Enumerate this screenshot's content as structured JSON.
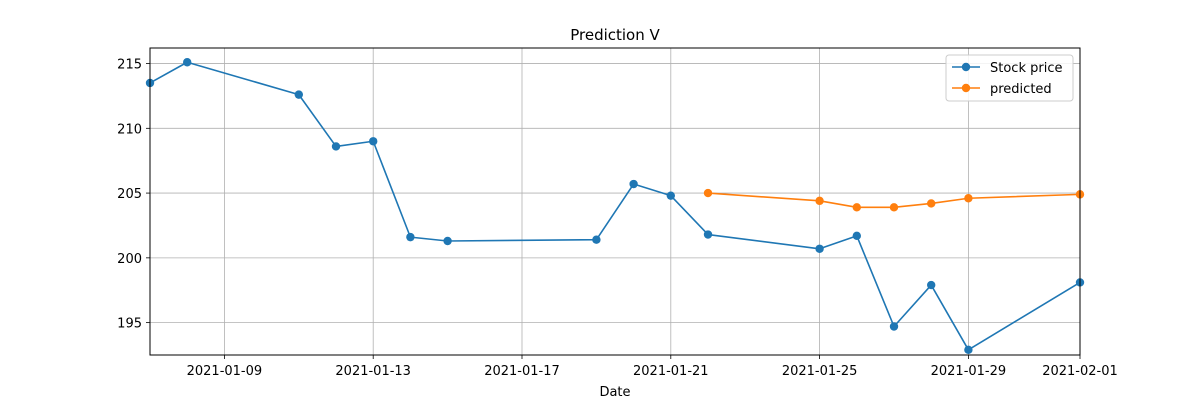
{
  "chart_data": {
    "type": "line",
    "title": "Prediction V",
    "xlabel": "Date",
    "ylabel": "",
    "xlim": [
      "2021-01-07",
      "2021-02-01"
    ],
    "ylim": [
      192.5,
      216.2
    ],
    "x_ticks": [
      "2021-01-09",
      "2021-01-13",
      "2021-01-17",
      "2021-01-21",
      "2021-01-25",
      "2021-01-29",
      "2021-02-01"
    ],
    "y_ticks": [
      195,
      200,
      205,
      210,
      215
    ],
    "grid": true,
    "legend_position": "top-right",
    "series": [
      {
        "name": "Stock price",
        "color": "#1f77b4",
        "points": [
          {
            "date": "2021-01-07",
            "value": 213.5
          },
          {
            "date": "2021-01-08",
            "value": 215.1
          },
          {
            "date": "2021-01-11",
            "value": 212.6
          },
          {
            "date": "2021-01-12",
            "value": 208.6
          },
          {
            "date": "2021-01-13",
            "value": 209.0
          },
          {
            "date": "2021-01-14",
            "value": 201.6
          },
          {
            "date": "2021-01-15",
            "value": 201.3
          },
          {
            "date": "2021-01-19",
            "value": 201.4
          },
          {
            "date": "2021-01-20",
            "value": 205.7
          },
          {
            "date": "2021-01-21",
            "value": 204.8
          },
          {
            "date": "2021-01-22",
            "value": 201.8
          },
          {
            "date": "2021-01-25",
            "value": 200.7
          },
          {
            "date": "2021-01-26",
            "value": 201.7
          },
          {
            "date": "2021-01-27",
            "value": 194.7
          },
          {
            "date": "2021-01-28",
            "value": 197.9
          },
          {
            "date": "2021-01-29",
            "value": 192.9
          },
          {
            "date": "2021-02-01",
            "value": 198.1
          }
        ]
      },
      {
        "name": "predicted",
        "color": "#ff7f0e",
        "points": [
          {
            "date": "2021-01-22",
            "value": 205.0
          },
          {
            "date": "2021-01-25",
            "value": 204.4
          },
          {
            "date": "2021-01-26",
            "value": 203.9
          },
          {
            "date": "2021-01-27",
            "value": 203.9
          },
          {
            "date": "2021-01-28",
            "value": 204.2
          },
          {
            "date": "2021-01-29",
            "value": 204.6
          },
          {
            "date": "2021-02-01",
            "value": 204.9
          }
        ]
      }
    ]
  }
}
